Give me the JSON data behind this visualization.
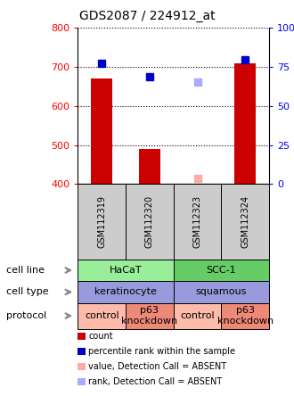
{
  "title": "GDS2087 / 224912_at",
  "samples": [
    "GSM112319",
    "GSM112320",
    "GSM112323",
    "GSM112324"
  ],
  "bar_values": [
    670,
    490,
    null,
    710
  ],
  "bar_color": "#cc0000",
  "percentile_values": [
    710,
    675,
    null,
    718
  ],
  "percentile_color": "#0000cc",
  "absent_value": [
    null,
    null,
    415,
    null
  ],
  "absent_value_color": "#ffaaaa",
  "absent_rank": [
    null,
    null,
    660,
    null
  ],
  "absent_rank_color": "#aaaaff",
  "ylim": [
    400,
    800
  ],
  "yticks_left": [
    400,
    500,
    600,
    700,
    800
  ],
  "yticks_right": [
    0,
    25,
    50,
    75,
    100
  ],
  "ytick_right_labels": [
    "0",
    "25",
    "50",
    "75",
    "100%"
  ],
  "cell_line_groups": [
    {
      "label": "HaCaT",
      "start": 0,
      "end": 2,
      "color": "#99ee99"
    },
    {
      "label": "SCC-1",
      "start": 2,
      "end": 4,
      "color": "#66cc66"
    }
  ],
  "cell_type_groups": [
    {
      "label": "keratinocyte",
      "start": 0,
      "end": 2,
      "color": "#9999dd"
    },
    {
      "label": "squamous",
      "start": 2,
      "end": 4,
      "color": "#9999dd"
    }
  ],
  "protocol_items": [
    {
      "label": "control",
      "color": "#ffbbaa"
    },
    {
      "label": "p63\nknockdown",
      "color": "#ee8877"
    },
    {
      "label": "control",
      "color": "#ffbbaa"
    },
    {
      "label": "p63\nknockdown",
      "color": "#ee8877"
    }
  ],
  "row_labels": [
    "cell line",
    "cell type",
    "protocol"
  ],
  "legend_items": [
    {
      "color": "#cc0000",
      "label": "count"
    },
    {
      "color": "#0000cc",
      "label": "percentile rank within the sample"
    },
    {
      "color": "#ffaaaa",
      "label": "value, Detection Call = ABSENT"
    },
    {
      "color": "#aaaaff",
      "label": "rank, Detection Call = ABSENT"
    }
  ],
  "bar_width": 0.45,
  "marker_size": 6,
  "sample_gray": "#cccccc",
  "fig_width": 3.3,
  "fig_height": 4.44,
  "dpi": 100
}
